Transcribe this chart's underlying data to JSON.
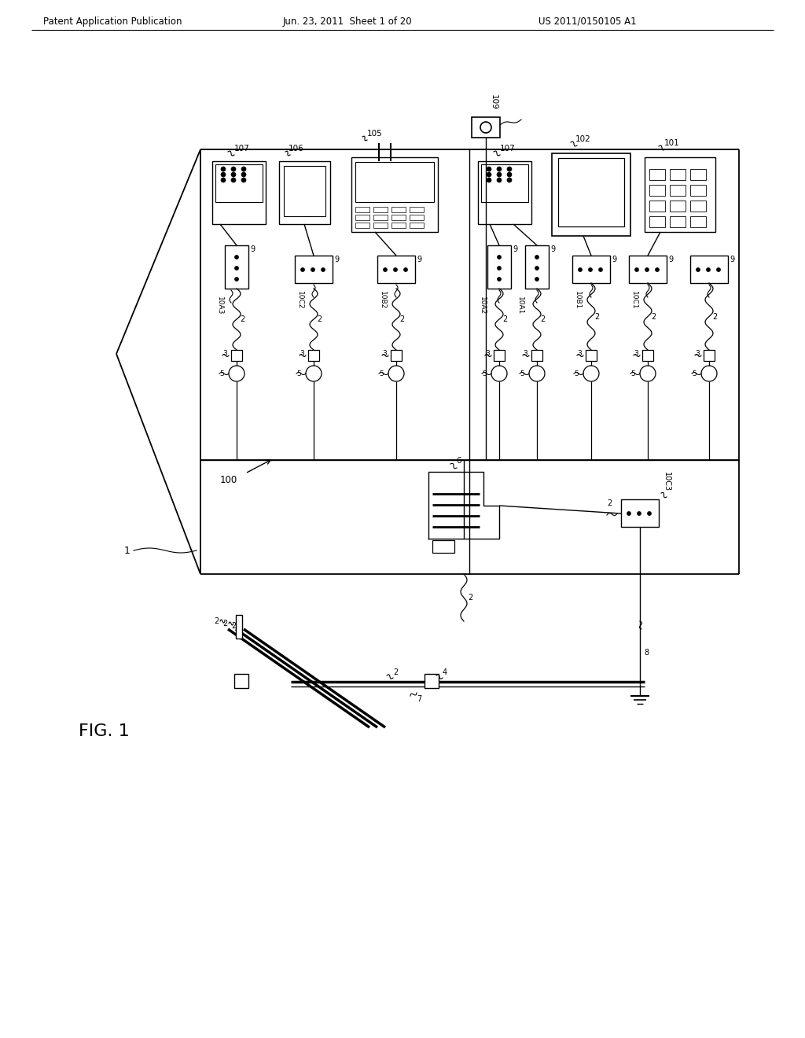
{
  "bg_color": "#ffffff",
  "header_left": "Patent Application Publication",
  "header_mid": "Jun. 23, 2011  Sheet 1 of 20",
  "header_right": "US 2011/0150105 A1",
  "line_color": "#000000"
}
